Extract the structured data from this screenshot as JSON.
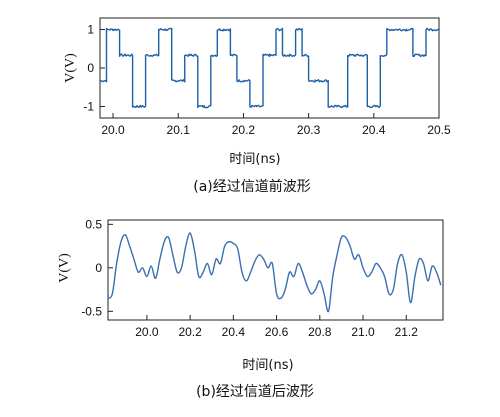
{
  "chart_data": [
    {
      "type": "line",
      "caption": "(a)经过信道前波形",
      "xlabel": "时间(ns)",
      "ylabel": "V(V)",
      "xlim": [
        19.98,
        20.5
      ],
      "ylim": [
        -1.3,
        1.3
      ],
      "x_ticks": [
        20.0,
        20.1,
        20.2,
        20.3,
        20.4,
        20.5
      ],
      "x_tick_labels": [
        "20.0",
        "20.1",
        "20.2",
        "20.3",
        "20.4",
        "20.5"
      ],
      "y_ticks": [
        -1,
        0,
        1
      ],
      "y_tick_labels": [
        "-1",
        "0",
        "1"
      ],
      "grid": false,
      "color": "#1f5fa8",
      "series": [
        {
          "symbol_rate_ns": 0.01,
          "start": 19.98,
          "levels": [
            -0.33,
            1,
            1,
            0.33,
            0.33,
            -1,
            -1,
            0.33,
            0.33,
            1,
            1,
            -0.33,
            -0.33,
            0.33,
            0.33,
            -1,
            -1,
            0.33,
            1,
            1,
            0.33,
            -0.33,
            -0.33,
            -1,
            -1,
            0.33,
            0.33,
            1,
            0.33,
            0.33,
            1,
            0.33,
            -0.33,
            -0.33,
            -0.33,
            -1,
            -1,
            -1,
            0.33,
            0.33,
            0.33,
            -1,
            -1,
            0.33,
            1,
            1,
            1,
            1,
            0.33,
            0.33,
            1,
            1,
            1,
            0.33,
            -0.33,
            -0.33,
            -0.33,
            -0.33,
            -0.33,
            -0.33,
            -0.33,
            0.33,
            0.33,
            1,
            0.33,
            -0.33,
            0.33,
            -0.33,
            -1,
            1,
            1,
            0.33,
            1,
            1
          ]
        }
      ]
    },
    {
      "type": "line",
      "caption": "(b)经过信道后波形",
      "xlabel": "时间(ns)",
      "ylabel": "V(V)",
      "xlim": [
        19.82,
        21.37
      ],
      "ylim": [
        -0.6,
        0.55
      ],
      "x_ticks": [
        20.0,
        20.2,
        20.4,
        20.6,
        20.8,
        21.0,
        21.2
      ],
      "x_tick_labels": [
        "20.0",
        "20.2",
        "20.4",
        "20.6",
        "20.8",
        "21.0",
        "21.2"
      ],
      "y_ticks": [
        -0.5,
        0,
        0.5
      ],
      "y_tick_labels": [
        "-0.5",
        "0",
        "0.5"
      ],
      "grid": false,
      "color": "#3a6fb0",
      "series": [
        {
          "x": [
            19.82,
            19.84,
            19.86,
            19.88,
            19.9,
            19.92,
            19.94,
            19.96,
            19.98,
            20.0,
            20.02,
            20.04,
            20.06,
            20.08,
            20.1,
            20.12,
            20.14,
            20.16,
            20.18,
            20.2,
            20.22,
            20.24,
            20.26,
            20.28,
            20.3,
            20.32,
            20.34,
            20.36,
            20.38,
            20.4,
            20.42,
            20.44,
            20.46,
            20.48,
            20.5,
            20.52,
            20.54,
            20.56,
            20.58,
            20.6,
            20.62,
            20.64,
            20.66,
            20.68,
            20.7,
            20.72,
            20.74,
            20.76,
            20.78,
            20.8,
            20.82,
            20.84,
            20.86,
            20.88,
            20.9,
            20.92,
            20.94,
            20.96,
            20.98,
            21.0,
            21.02,
            21.04,
            21.06,
            21.08,
            21.1,
            21.12,
            21.14,
            21.16,
            21.18,
            21.2,
            21.22,
            21.24,
            21.26,
            21.28,
            21.3,
            21.32,
            21.34,
            21.36
          ],
          "y": [
            -0.35,
            -0.3,
            0.05,
            0.3,
            0.38,
            0.25,
            0.1,
            -0.05,
            0.0,
            -0.1,
            0.02,
            -0.12,
            0.1,
            0.3,
            0.35,
            0.15,
            -0.05,
            0.0,
            0.25,
            0.4,
            0.2,
            -0.1,
            -0.05,
            0.05,
            -0.08,
            0.1,
            0.05,
            0.25,
            0.3,
            0.28,
            0.22,
            -0.05,
            -0.15,
            -0.05,
            0.08,
            0.15,
            0.1,
            0.0,
            0.05,
            -0.3,
            -0.35,
            -0.25,
            -0.05,
            -0.1,
            0.05,
            -0.05,
            -0.2,
            -0.3,
            -0.25,
            -0.15,
            -0.3,
            -0.5,
            -0.1,
            0.15,
            0.35,
            0.35,
            0.25,
            0.1,
            0.15,
            0.0,
            -0.1,
            -0.05,
            0.05,
            0.0,
            -0.1,
            -0.3,
            -0.25,
            0.05,
            0.15,
            -0.05,
            -0.4,
            -0.1,
            0.1,
            0.05,
            -0.15,
            0.02,
            -0.05,
            -0.2
          ]
        }
      ]
    }
  ]
}
